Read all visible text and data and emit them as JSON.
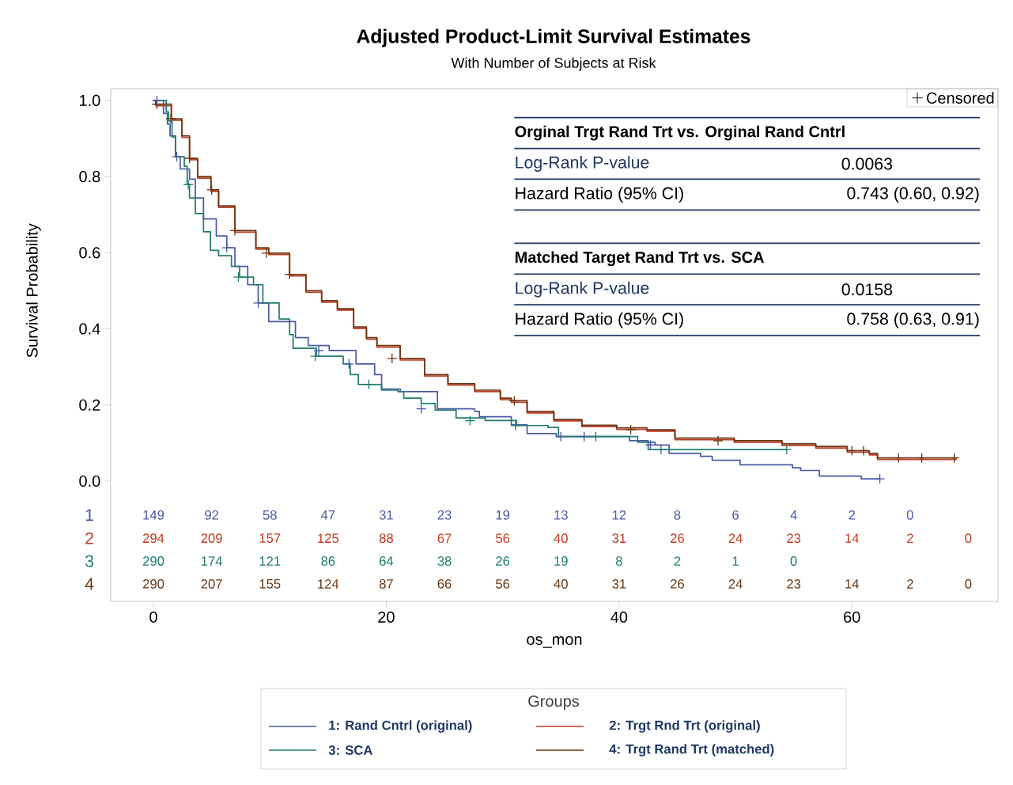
{
  "chart_data": {
    "type": "step",
    "title": "Adjusted Product-Limit Survival Estimates",
    "subtitle": "With Number of Subjects at Risk",
    "xlabel": "os_mon",
    "ylabel": "Survival Probability",
    "legend_title": "Groups",
    "legend": "bottom",
    "xlim": [
      -3.67,
      72.55
    ],
    "ylim": [
      -0.316,
      1.031
    ],
    "xticks": [
      0,
      20,
      40,
      60
    ],
    "yticks": [
      {
        "value": 0,
        "label": "0.0"
      },
      {
        "value": 0.2,
        "label": "0.2"
      },
      {
        "value": 0.4,
        "label": "0.4"
      },
      {
        "value": 0.6,
        "label": "0.6"
      },
      {
        "value": 0.8,
        "label": "0.8"
      },
      {
        "value": 1,
        "label": "1.0"
      }
    ],
    "series": [
      {
        "name": "1: Rand Cntrl (original)",
        "color": "#4b5aa8",
        "x": [
          0,
          0.86,
          1.2,
          1.43,
          1.9,
          2.3,
          3.1,
          3.6,
          4.3,
          5.4,
          6.3,
          7.0,
          8.1,
          9.0,
          9.9,
          12.2,
          13.3,
          15.1,
          17.4,
          19.0,
          19.6,
          21.2,
          24.4,
          27.6,
          28.0,
          30.75,
          32.1,
          34.6,
          40.9,
          42.5,
          43.1,
          44.3,
          47.0,
          48.0,
          50.4,
          54.9,
          55.6,
          57.2,
          60.8,
          62.4
        ],
        "values": [
          1.0,
          0.966,
          0.938,
          0.907,
          0.852,
          0.82,
          0.793,
          0.744,
          0.689,
          0.644,
          0.613,
          0.564,
          0.516,
          0.468,
          0.419,
          0.377,
          0.356,
          0.343,
          0.308,
          0.28,
          0.242,
          0.235,
          0.19,
          0.183,
          0.169,
          0.148,
          0.125,
          0.117,
          0.106,
          0.102,
          0.095,
          0.073,
          0.065,
          0.055,
          0.043,
          0.035,
          0.028,
          0.013,
          0.006,
          0.006
        ]
      },
      {
        "name": "2: Trgt Rnd Trt (original)",
        "color": "#c23b22",
        "x": [
          0,
          0.2,
          1.54,
          2.45,
          3.1,
          3.8,
          4.94,
          5.6,
          7.0,
          8.8,
          9.9,
          11.7,
          13.1,
          14.45,
          15.8,
          17.2,
          18.3,
          19.2,
          21.2,
          23.3,
          25.3,
          27.6,
          29.8,
          30.75,
          32.1,
          34.4,
          36.8,
          39.8,
          42.4,
          44.8,
          49.9,
          54.0,
          56.9,
          59.6,
          61.5,
          62.2,
          69.0
        ],
        "values": [
          1.0,
          0.986,
          0.948,
          0.903,
          0.844,
          0.796,
          0.761,
          0.719,
          0.654,
          0.609,
          0.595,
          0.539,
          0.496,
          0.47,
          0.449,
          0.401,
          0.373,
          0.352,
          0.318,
          0.276,
          0.252,
          0.235,
          0.214,
          0.207,
          0.179,
          0.158,
          0.143,
          0.136,
          0.131,
          0.109,
          0.102,
          0.094,
          0.087,
          0.076,
          0.069,
          0.057,
          0.057
        ]
      },
      {
        "name": "3: SCA",
        "color": "#1f7f6e",
        "x": [
          0,
          1.1,
          1.3,
          1.6,
          1.9,
          2.65,
          2.9,
          3.1,
          3.6,
          4.3,
          4.9,
          5.6,
          6.7,
          7.4,
          8.6,
          9.4,
          10.8,
          11.7,
          12.0,
          14.0,
          16.3,
          16.9,
          17.6,
          19.6,
          21.0,
          21.5,
          23.0,
          24.2,
          26.0,
          28.5,
          31.2,
          33.9,
          34.8,
          41.6,
          42.5,
          54.4
        ],
        "values": [
          1.0,
          0.97,
          0.946,
          0.904,
          0.852,
          0.827,
          0.779,
          0.744,
          0.703,
          0.655,
          0.606,
          0.592,
          0.564,
          0.536,
          0.516,
          0.468,
          0.426,
          0.385,
          0.349,
          0.328,
          0.308,
          0.28,
          0.254,
          0.239,
          0.235,
          0.218,
          0.204,
          0.187,
          0.166,
          0.159,
          0.146,
          0.141,
          0.117,
          0.102,
          0.083,
          0.083
        ]
      },
      {
        "name": "4: Trgt Rand Trt (matched)",
        "color": "#6b3a16",
        "x": [
          0,
          0.2,
          1.54,
          2.45,
          3.1,
          3.8,
          4.94,
          5.6,
          7.0,
          8.8,
          9.9,
          11.7,
          13.1,
          14.45,
          15.8,
          17.2,
          18.3,
          19.2,
          21.2,
          23.3,
          25.3,
          27.6,
          29.8,
          30.75,
          32.1,
          34.4,
          36.8,
          39.8,
          42.4,
          44.8,
          49.9,
          54.0,
          56.9,
          59.6,
          61.5,
          62.2,
          69.0
        ],
        "values": [
          1.0,
          0.99,
          0.952,
          0.907,
          0.848,
          0.8,
          0.765,
          0.723,
          0.658,
          0.613,
          0.599,
          0.543,
          0.5,
          0.474,
          0.453,
          0.405,
          0.377,
          0.356,
          0.322,
          0.28,
          0.256,
          0.239,
          0.218,
          0.211,
          0.183,
          0.162,
          0.147,
          0.14,
          0.135,
          0.113,
          0.106,
          0.098,
          0.091,
          0.08,
          0.073,
          0.061,
          0.061
        ]
      },
      {
        "type": "scatter",
        "marker": "cross",
        "x": [
          0.3,
          1.5,
          3.1,
          5.0,
          7.0,
          9.7,
          11.7,
          20.5,
          31.0,
          41.0,
          48.5,
          60.0,
          61.0,
          64.0,
          66.0,
          68.8,
          0.3,
          2.0,
          6.3,
          9.0,
          14.2,
          16.8,
          23.0,
          35.0,
          37.0,
          42.7,
          62.4,
          3.0,
          7.3,
          13.9,
          18.5,
          27.2,
          31.1,
          38.0,
          43.6,
          54.4
        ],
        "values": [
          0.99,
          0.952,
          0.848,
          0.765,
          0.658,
          0.599,
          0.543,
          0.322,
          0.211,
          0.135,
          0.106,
          0.08,
          0.08,
          0.061,
          0.061,
          0.061,
          1.0,
          0.852,
          0.613,
          0.468,
          0.343,
          0.308,
          0.19,
          0.117,
          0.117,
          0.095,
          0.006,
          0.779,
          0.536,
          0.328,
          0.254,
          0.159,
          0.146,
          0.117,
          0.083,
          0.083
        ],
        "colors": [
          "#6b3a16",
          "#6b3a16",
          "#6b3a16",
          "#6b3a16",
          "#6b3a16",
          "#6b3a16",
          "#6b3a16",
          "#6b3a16",
          "#6b3a16",
          "#6b3a16",
          "#6b3a16",
          "#6b3a16",
          "#6b3a16",
          "#6b3a16",
          "#6b3a16",
          "#6b3a16",
          "#4b5aa8",
          "#4b5aa8",
          "#4b5aa8",
          "#4b5aa8",
          "#4b5aa8",
          "#4b5aa8",
          "#4b5aa8",
          "#4b5aa8",
          "#4b5aa8",
          "#4b5aa8",
          "#4b5aa8",
          "#1f7f6e",
          "#1f7f6e",
          "#1f7f6e",
          "#1f7f6e",
          "#1f7f6e",
          "#1f7f6e",
          "#1f7f6e",
          "#1f7f6e",
          "#1f7f6e"
        ]
      }
    ],
    "annotations": [
      "Orginal Trgt Rand Trt vs. Orginal Rand Cntrl",
      "Log-Rank P-value",
      "0.0063",
      "Hazard Ratio (95% CI)",
      "0.743 (0.60, 0.92)",
      "Matched Target Rand Trt vs. SCA",
      "Log-Rank P-value",
      "0.0158",
      "Hazard Ratio (95% CI)",
      "0.758 (0.63, 0.91)",
      "Censored",
      "1",
      "2",
      "3",
      "4",
      "149",
      "92",
      "58",
      "47",
      "31",
      "23",
      "19",
      "13",
      "12",
      "8",
      "6",
      "4",
      "2",
      "0",
      "294",
      "209",
      "157",
      "125",
      "88",
      "67",
      "56",
      "40",
      "31",
      "26",
      "24",
      "23",
      "14",
      "2",
      "0",
      "290",
      "174",
      "121",
      "86",
      "64",
      "38",
      "26",
      "19",
      "8",
      "2",
      "1",
      "0",
      "290",
      "207",
      "155",
      "124",
      "87",
      "66",
      "56",
      "40",
      "31",
      "26",
      "24",
      "23",
      "14",
      "2",
      "0"
    ]
  }
}
